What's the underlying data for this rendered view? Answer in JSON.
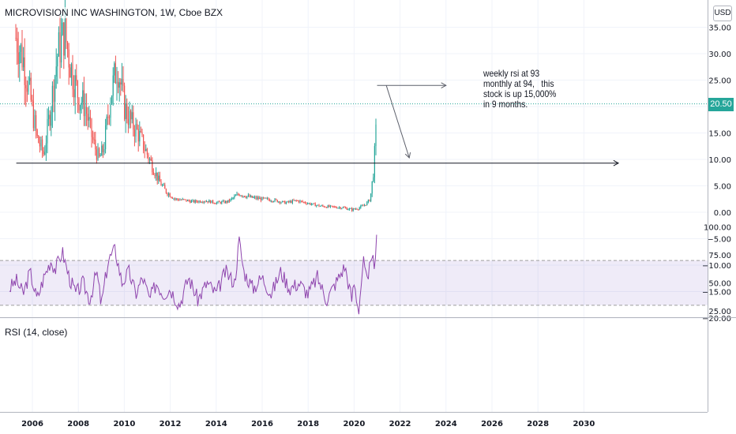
{
  "header": {
    "symbol_title": "MICROVISION INC WASHINGTON, 1W, Cboe BZX",
    "currency": "USD",
    "last_price_label": "20.50"
  },
  "annotation": {
    "lines": [
      "weekly rsi at 93",
      "monthly at 94,   this",
      "stock is up 15,000%",
      "in 9 months."
    ]
  },
  "chart_data": [
    {
      "type": "line",
      "style": "candlestick",
      "title": "MICROVISION INC WASHINGTON, 1W, Cboe BZX",
      "x_ticks": [
        "2006",
        "2008",
        "2010",
        "2012",
        "2014",
        "2016",
        "2018",
        "2020",
        "2022",
        "2024",
        "2026",
        "2028",
        "2030"
      ],
      "y_ticks": [
        "35.00",
        "30.00",
        "25.00",
        "20.00",
        "15.00",
        "10.00",
        "5.00",
        "0.00",
        "−5.00",
        "−10.00",
        "−15.00",
        "−20.00"
      ],
      "ylim": [
        -20,
        35
      ],
      "last_price": 20.5,
      "series": [
        {
          "x": [
            2005.3,
            2005.6,
            2005.9,
            2006.2,
            2006.5,
            2006.8,
            2007.1,
            2007.4,
            2007.7,
            2008.0,
            2008.3,
            2008.6,
            2008.9,
            2009.1,
            2009.4,
            2009.7,
            2010.0,
            2010.3,
            2010.6,
            2010.9,
            2011.2,
            2011.5,
            2011.8,
            2012.2,
            2012.6,
            2013.0,
            2013.5,
            2014.0,
            2014.5,
            2015.0,
            2015.5,
            2016.0,
            2016.5,
            2017.0,
            2017.5,
            2018.0,
            2018.5,
            2019.0,
            2019.5,
            2019.9,
            2020.2,
            2020.5,
            2020.7,
            2020.85,
            2020.95,
            2021.0
          ],
          "values": [
            33,
            29,
            22,
            14,
            11,
            20,
            30,
            34,
            27,
            22,
            20,
            14,
            10,
            12,
            22,
            28,
            20,
            17,
            15,
            12,
            9,
            6,
            4,
            2.5,
            2.3,
            2.0,
            2.2,
            1.8,
            2.0,
            3.5,
            2.8,
            2.5,
            2.3,
            1.8,
            2.2,
            1.7,
            1.2,
            1.0,
            0.9,
            0.5,
            0.8,
            1.5,
            2.5,
            8.0,
            15.0,
            23.0
          ]
        }
      ],
      "drawings": [
        {
          "type": "horizontal-ray",
          "from": [
            2005.3,
            9.3
          ],
          "to": [
            2031.5,
            9.3
          ]
        },
        {
          "type": "arrow",
          "from": [
            2021.0,
            24.0
          ],
          "to": [
            2024.0,
            24.0
          ]
        },
        {
          "type": "arrow",
          "from": [
            2021.4,
            24.0
          ],
          "to": [
            2022.4,
            10.3
          ]
        }
      ]
    },
    {
      "type": "line",
      "title": "RSI (14, close)",
      "y_ticks": [
        "100.00",
        "75.00",
        "50.00",
        "25.00"
      ],
      "ylim": [
        20,
        100
      ],
      "bands": [
        30,
        70
      ],
      "series": [
        {
          "x": [
            2005.0,
            2005.3,
            2005.6,
            2005.9,
            2006.2,
            2006.5,
            2006.8,
            2007.0,
            2007.3,
            2007.6,
            2007.9,
            2008.2,
            2008.5,
            2008.8,
            2009.0,
            2009.3,
            2009.6,
            2009.9,
            2010.2,
            2010.5,
            2010.8,
            2011.1,
            2011.4,
            2011.7,
            2012.0,
            2012.4,
            2012.8,
            2013.2,
            2013.6,
            2014.0,
            2014.4,
            2014.8,
            2015.0,
            2015.2,
            2015.6,
            2016.0,
            2016.4,
            2016.8,
            2017.2,
            2017.6,
            2018.0,
            2018.4,
            2018.8,
            2019.2,
            2019.6,
            2019.9,
            2020.0,
            2020.2,
            2020.4,
            2020.6,
            2020.75,
            2020.9,
            2021.0
          ],
          "values": [
            45,
            52,
            40,
            60,
            35,
            55,
            70,
            62,
            78,
            55,
            40,
            50,
            35,
            60,
            30,
            70,
            80,
            50,
            60,
            40,
            55,
            35,
            50,
            40,
            45,
            30,
            55,
            35,
            50,
            40,
            60,
            50,
            88,
            60,
            45,
            55,
            40,
            60,
            45,
            50,
            40,
            55,
            35,
            50,
            65,
            35,
            50,
            25,
            70,
            45,
            82,
            55,
            93
          ]
        }
      ]
    }
  ]
}
